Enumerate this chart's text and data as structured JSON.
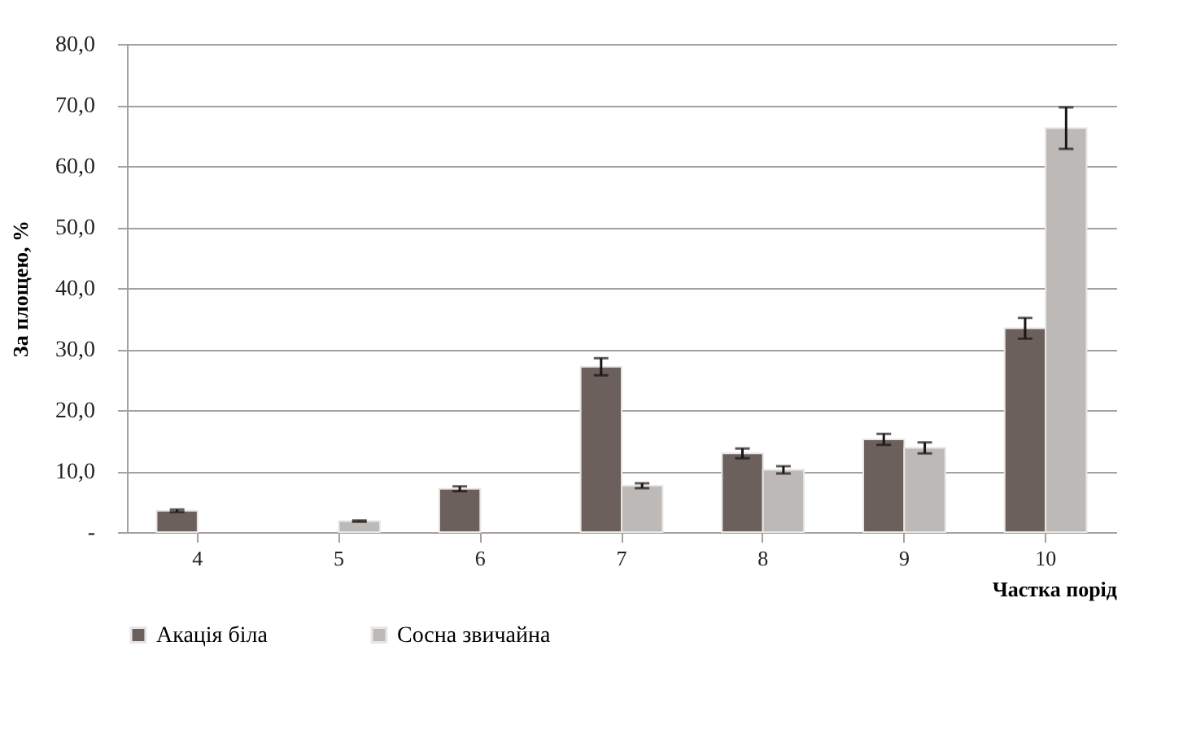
{
  "chart_data": {
    "type": "bar",
    "xlabel": "Частка порід",
    "ylabel": "За площею, %",
    "categories": [
      "4",
      "5",
      "6",
      "7",
      "8",
      "9",
      "10"
    ],
    "series": [
      {
        "name": "Акація біла",
        "color": "#6b605c",
        "values": [
          3.5,
          null,
          7.1,
          27.1,
          12.9,
          15.2,
          33.4
        ],
        "errors": [
          0.2,
          null,
          0.4,
          1.4,
          0.8,
          0.9,
          1.7
        ]
      },
      {
        "name": "Сосна звичайна",
        "color": "#bdb9b6",
        "values": [
          null,
          1.8,
          null,
          7.6,
          10.2,
          13.8,
          66.2
        ],
        "errors": [
          null,
          0.1,
          null,
          0.4,
          0.6,
          0.9,
          3.4
        ]
      }
    ],
    "ylim": [
      0,
      80
    ],
    "yticks": [
      {
        "value": 0,
        "label": "-"
      },
      {
        "value": 10,
        "label": "10,0"
      },
      {
        "value": 20,
        "label": "20,0"
      },
      {
        "value": 30,
        "label": "30,0"
      },
      {
        "value": 40,
        "label": "40,0"
      },
      {
        "value": 50,
        "label": "50,0"
      },
      {
        "value": 60,
        "label": "60,0"
      },
      {
        "value": 70,
        "label": "70,0"
      },
      {
        "value": 80,
        "label": "80,0"
      }
    ],
    "grid": "y",
    "legend": "bottom"
  }
}
